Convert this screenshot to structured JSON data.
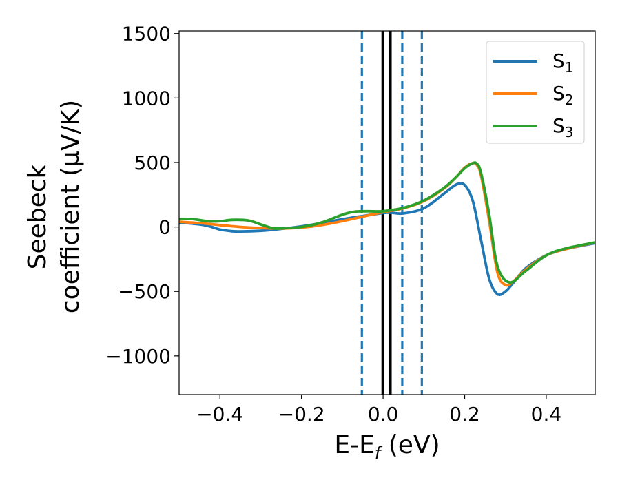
{
  "chart_data": {
    "type": "line",
    "xlabel": "E-E",
    "xlabel_sub": "f",
    "xlabel_unit": " (eV)",
    "ylabel_line1": "Seebeck",
    "ylabel_line2": "coefficient  (μV/K)",
    "xlim": [
      -0.5,
      0.52
    ],
    "ylim": [
      -1300,
      1520
    ],
    "xticks": [
      -0.4,
      -0.2,
      0.0,
      0.2,
      0.4
    ],
    "xtick_labels": [
      "−0.4",
      "−0.2",
      "0.0",
      "0.2",
      "0.4"
    ],
    "yticks": [
      -1000,
      -500,
      0,
      500,
      1000,
      1500
    ],
    "ytick_labels": [
      "−1000",
      "−500",
      "0",
      "500",
      "1000",
      "1500"
    ],
    "grid": false,
    "legend_position": "top-right",
    "vertical_lines": [
      {
        "x": -0.052,
        "style": "dashed",
        "color": "#1f77b4"
      },
      {
        "x": -0.001,
        "style": "solid",
        "color": "#000000"
      },
      {
        "x": 0.018,
        "style": "solid",
        "color": "#000000"
      },
      {
        "x": 0.047,
        "style": "dashed",
        "color": "#1f77b4"
      },
      {
        "x": 0.095,
        "style": "dashed",
        "color": "#1f77b4"
      }
    ],
    "series": [
      {
        "name": "S",
        "sub": "1",
        "color": "#1f77b4",
        "x": [
          -0.5,
          -0.45,
          -0.42,
          -0.4,
          -0.37,
          -0.35,
          -0.3,
          -0.25,
          -0.2,
          -0.15,
          -0.1,
          -0.05,
          0.0,
          0.02,
          0.05,
          0.1,
          0.15,
          0.18,
          0.2,
          0.22,
          0.24,
          0.26,
          0.28,
          0.3,
          0.32,
          0.35,
          0.4,
          0.45,
          0.52
        ],
        "y": [
          35,
          20,
          0,
          -20,
          -33,
          -35,
          -30,
          -15,
          5,
          30,
          60,
          85,
          108,
          110,
          105,
          145,
          260,
          330,
          325,
          200,
          -100,
          -400,
          -520,
          -500,
          -430,
          -320,
          -220,
          -170,
          -125
        ]
      },
      {
        "name": "S",
        "sub": "2",
        "color": "#ff7f0e",
        "x": [
          -0.5,
          -0.45,
          -0.4,
          -0.35,
          -0.3,
          -0.25,
          -0.2,
          -0.15,
          -0.1,
          -0.05,
          0.0,
          0.05,
          0.1,
          0.15,
          0.18,
          0.2,
          0.22,
          0.23,
          0.24,
          0.26,
          0.28,
          0.3,
          0.32,
          0.35,
          0.4,
          0.45,
          0.52
        ],
        "y": [
          40,
          30,
          15,
          0,
          -8,
          -12,
          -5,
          15,
          45,
          80,
          115,
          145,
          200,
          300,
          390,
          460,
          495,
          480,
          400,
          50,
          -350,
          -450,
          -420,
          -330,
          -220,
          -170,
          -120
        ]
      },
      {
        "name": "S",
        "sub": "3",
        "color": "#2ca02c",
        "x": [
          -0.5,
          -0.47,
          -0.43,
          -0.4,
          -0.37,
          -0.33,
          -0.3,
          -0.27,
          -0.25,
          -0.2,
          -0.15,
          -0.1,
          -0.07,
          -0.04,
          0.0,
          0.05,
          0.1,
          0.15,
          0.18,
          0.2,
          0.22,
          0.23,
          0.24,
          0.26,
          0.28,
          0.31,
          0.35,
          0.4,
          0.45,
          0.52
        ],
        "y": [
          60,
          62,
          45,
          45,
          55,
          50,
          20,
          -10,
          -10,
          0,
          35,
          95,
          118,
          122,
          122,
          148,
          205,
          305,
          390,
          455,
          495,
          490,
          420,
          100,
          -300,
          -430,
          -340,
          -220,
          -165,
          -120
        ]
      }
    ]
  }
}
